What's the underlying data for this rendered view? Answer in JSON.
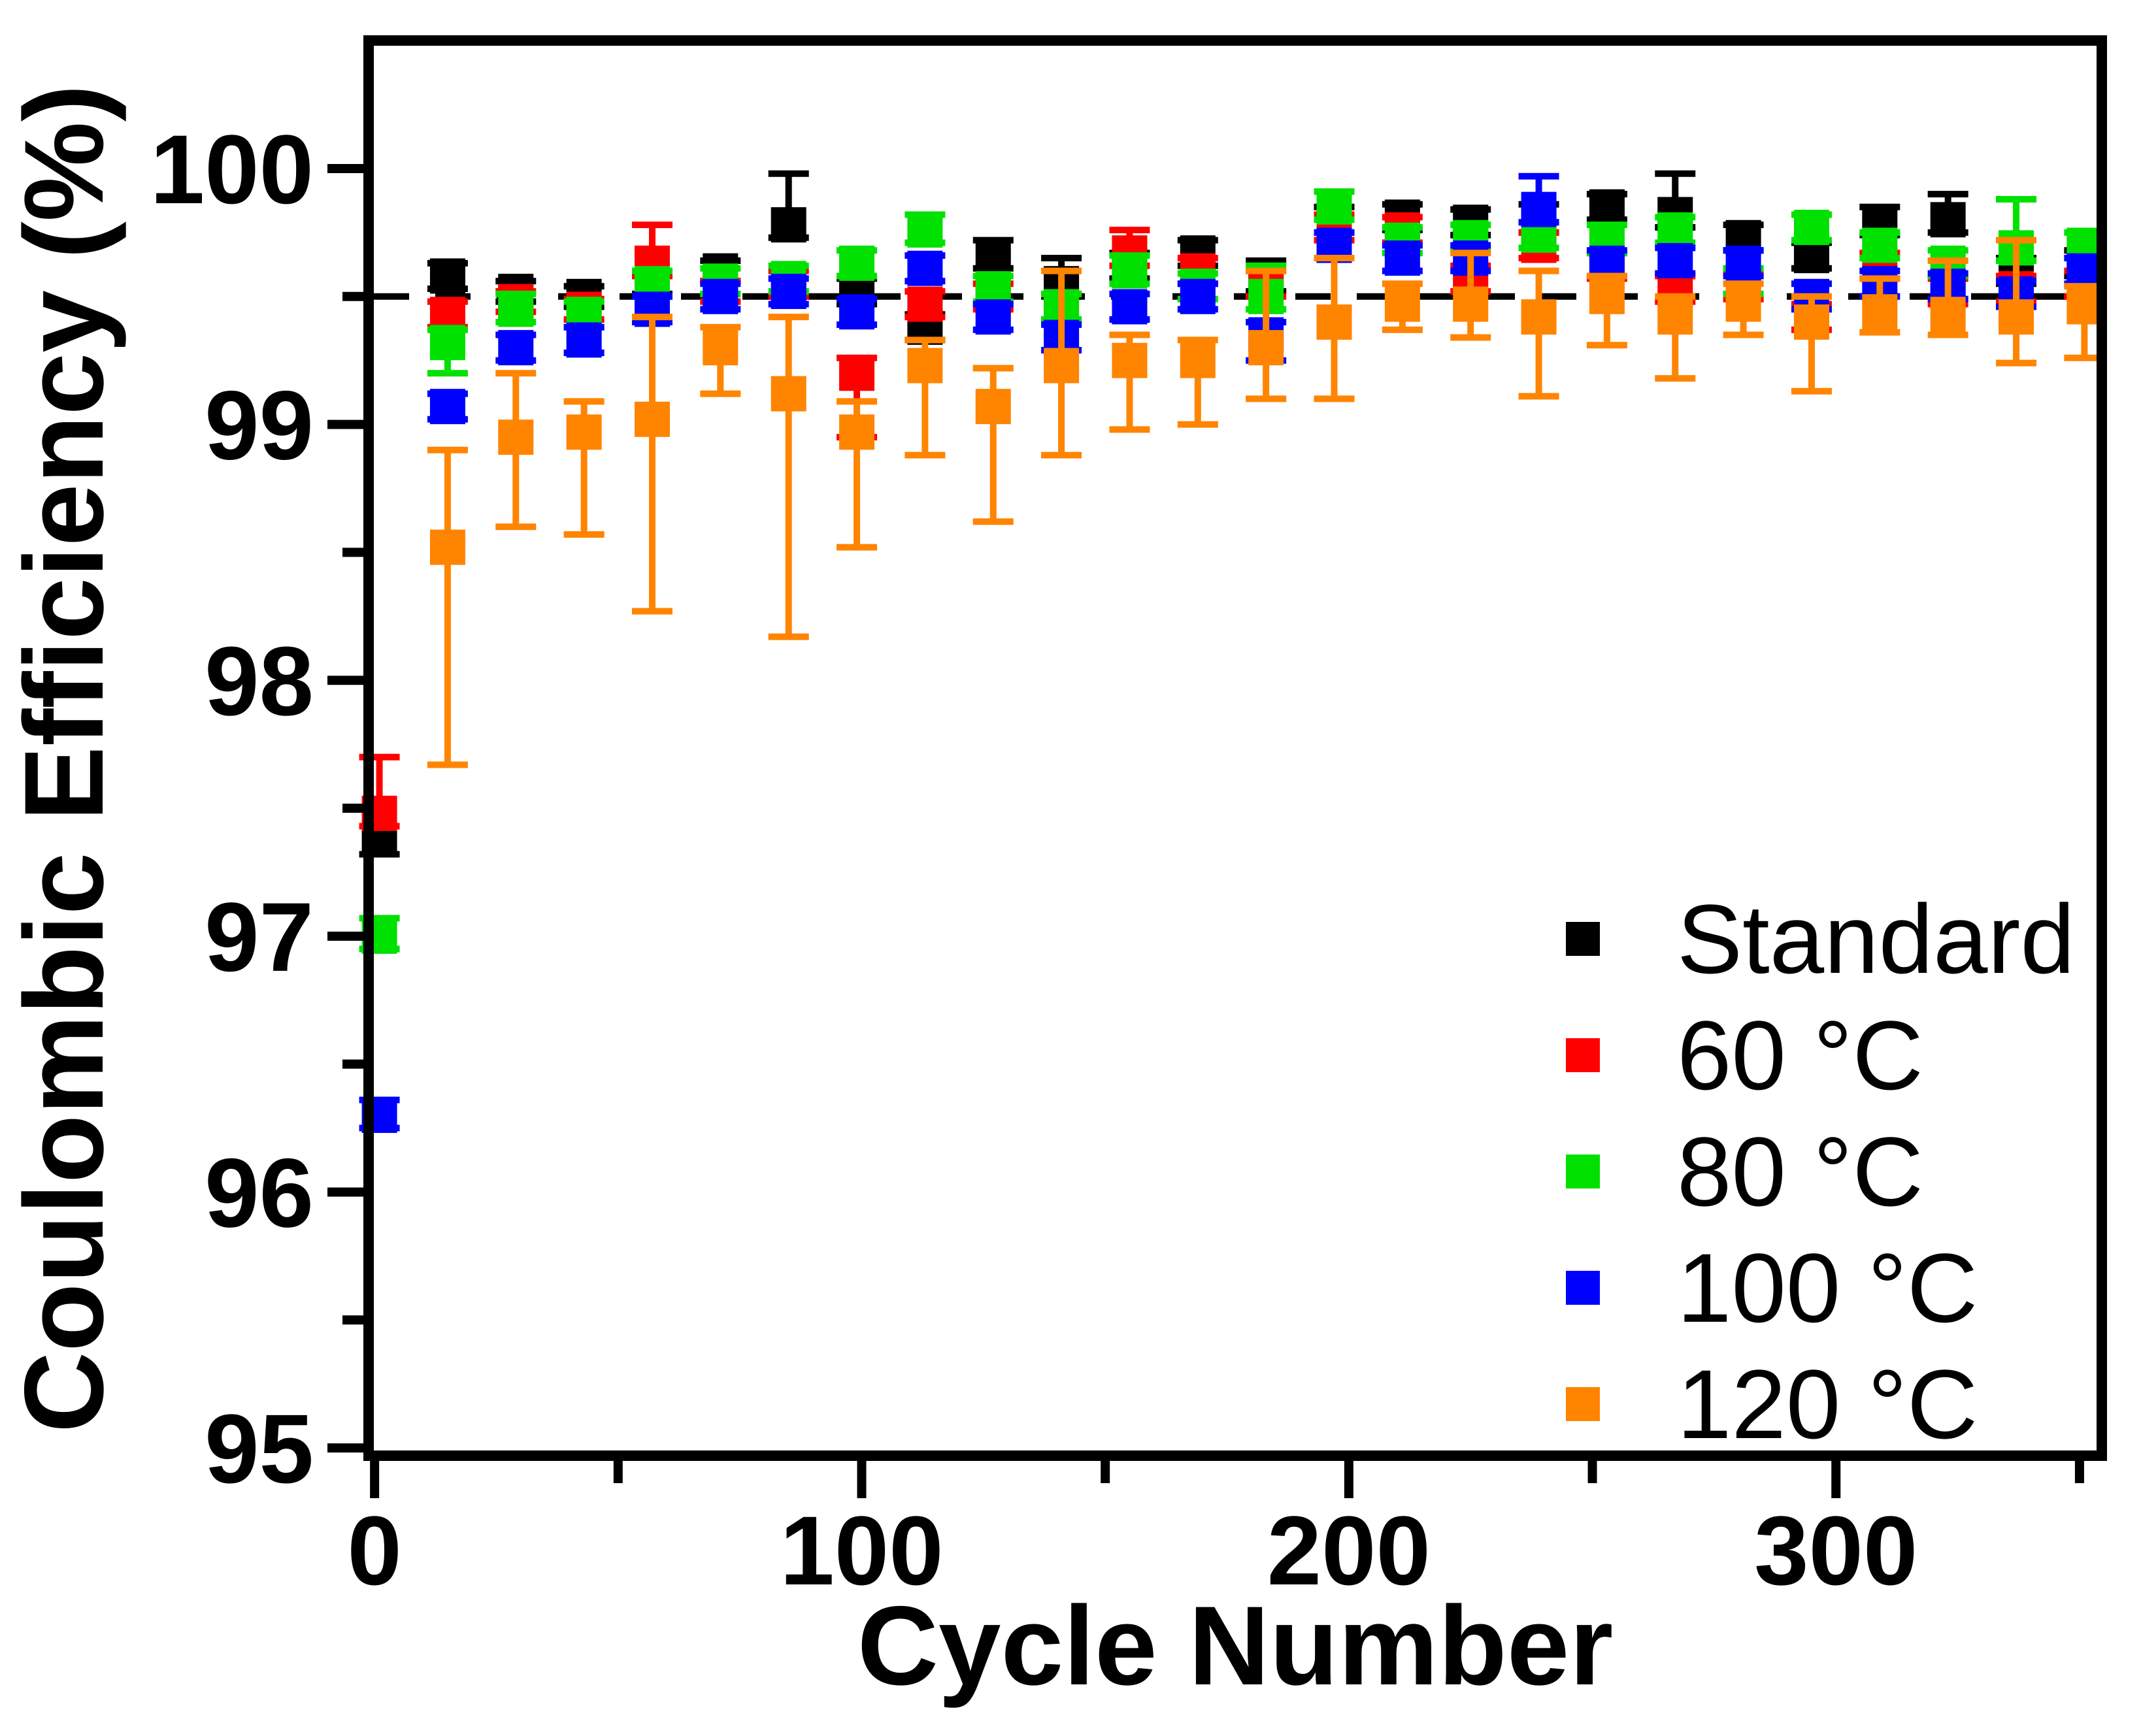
{
  "chart_data": {
    "type": "scatter",
    "title": "",
    "xlabel": "Cycle Number",
    "ylabel": "Coulombic Efficiency (%)",
    "xlim": [
      -0.15,
      353.5
    ],
    "ylim": [
      94.99,
      100.48
    ],
    "x_ticks": [
      0,
      100,
      200,
      300
    ],
    "x_minor_ticks": [
      50,
      150,
      250,
      350
    ],
    "y_ticks": [
      100,
      99,
      98,
      97,
      96,
      95
    ],
    "y_minor_ticks": [
      99.5,
      98.5,
      97.5,
      96.5,
      95.5
    ],
    "grid": false,
    "reference_line_y": 99.5,
    "reference_line_style": "dashed",
    "legend_position": "lower right",
    "marker": "square",
    "point_format": [
      "cycle",
      "value",
      "err_up",
      "err_down"
    ],
    "series": [
      {
        "name": "Standard",
        "color": "#000000",
        "points": [
          [
            1,
            97.38,
            0.0,
            0.06
          ],
          [
            15,
            99.58,
            0.05,
            0.05
          ],
          [
            29,
            99.52,
            0.04,
            0.04
          ],
          [
            43,
            99.5,
            0.04,
            0.04
          ],
          [
            57,
            99.55,
            0.04,
            0.04
          ],
          [
            71,
            99.6,
            0.04,
            0.04
          ],
          [
            85,
            99.78,
            0.2,
            0.05
          ],
          [
            99,
            99.52,
            0.05,
            0.05
          ],
          [
            113,
            99.38,
            0.05,
            0.05
          ],
          [
            127,
            99.66,
            0.06,
            0.05
          ],
          [
            141,
            99.55,
            0.1,
            0.05
          ],
          [
            155,
            99.62,
            0.05,
            0.05
          ],
          [
            169,
            99.67,
            0.05,
            0.05
          ],
          [
            183,
            99.58,
            0.06,
            0.06
          ],
          [
            197,
            99.8,
            0.05,
            0.05
          ],
          [
            211,
            99.81,
            0.05,
            0.05
          ],
          [
            225,
            99.79,
            0.05,
            0.05
          ],
          [
            239,
            99.8,
            0.06,
            0.05
          ],
          [
            253,
            99.85,
            0.05,
            0.05
          ],
          [
            267,
            99.82,
            0.16,
            0.05
          ],
          [
            281,
            99.73,
            0.05,
            0.05
          ],
          [
            295,
            99.66,
            0.05,
            0.05
          ],
          [
            309,
            99.79,
            0.06,
            0.05
          ],
          [
            323,
            99.8,
            0.1,
            0.05
          ],
          [
            337,
            99.6,
            0.05,
            0.05
          ],
          [
            351,
            99.63,
            0.05,
            0.05
          ]
        ]
      },
      {
        "name": "60 °C",
        "color": "#ff0000",
        "points": [
          [
            1,
            97.48,
            0.22,
            0.05
          ],
          [
            15,
            99.43,
            0.05,
            0.05
          ],
          [
            29,
            99.48,
            0.04,
            0.04
          ],
          [
            43,
            99.45,
            0.04,
            0.04
          ],
          [
            57,
            99.63,
            0.15,
            0.05
          ],
          [
            71,
            99.52,
            0.04,
            0.04
          ],
          [
            85,
            99.55,
            0.05,
            0.05
          ],
          [
            99,
            99.2,
            0.06,
            0.25
          ],
          [
            113,
            99.47,
            0.05,
            0.05
          ],
          [
            127,
            99.5,
            0.05,
            0.05
          ],
          [
            141,
            99.46,
            0.05,
            0.05
          ],
          [
            155,
            99.67,
            0.09,
            0.05
          ],
          [
            169,
            99.6,
            0.05,
            0.05
          ],
          [
            183,
            99.55,
            0.05,
            0.05
          ],
          [
            197,
            99.77,
            0.05,
            0.05
          ],
          [
            211,
            99.76,
            0.05,
            0.05
          ],
          [
            225,
            99.57,
            0.05,
            0.05
          ],
          [
            239,
            99.7,
            0.05,
            0.05
          ],
          [
            253,
            99.62,
            0.05,
            0.05
          ],
          [
            267,
            99.53,
            0.05,
            0.05
          ],
          [
            281,
            99.54,
            0.05,
            0.05
          ],
          [
            295,
            99.42,
            0.05,
            0.05
          ],
          [
            309,
            99.62,
            0.05,
            0.05
          ],
          [
            323,
            99.52,
            0.05,
            0.05
          ],
          [
            337,
            99.53,
            0.05,
            0.05
          ],
          [
            351,
            99.55,
            0.05,
            0.05
          ]
        ]
      },
      {
        "name": "80 °C",
        "color": "#00e100",
        "points": [
          [
            1,
            97.0,
            0.07,
            0.05
          ],
          [
            15,
            99.32,
            0.05,
            0.12
          ],
          [
            29,
            99.45,
            0.06,
            0.05
          ],
          [
            43,
            99.43,
            0.05,
            0.05
          ],
          [
            57,
            99.55,
            0.05,
            0.05
          ],
          [
            71,
            99.56,
            0.05,
            0.05
          ],
          [
            85,
            99.57,
            0.05,
            0.05
          ],
          [
            99,
            99.63,
            0.05,
            0.05
          ],
          [
            113,
            99.76,
            0.06,
            0.05
          ],
          [
            127,
            99.53,
            0.05,
            0.05
          ],
          [
            141,
            99.46,
            0.05,
            0.05
          ],
          [
            155,
            99.6,
            0.06,
            0.05
          ],
          [
            169,
            99.54,
            0.05,
            0.05
          ],
          [
            183,
            99.5,
            0.12,
            0.05
          ],
          [
            197,
            99.85,
            0.06,
            0.05
          ],
          [
            211,
            99.72,
            0.05,
            0.05
          ],
          [
            225,
            99.73,
            0.05,
            0.05
          ],
          [
            239,
            99.74,
            0.05,
            0.05
          ],
          [
            253,
            99.72,
            0.06,
            0.05
          ],
          [
            267,
            99.76,
            0.05,
            0.05
          ],
          [
            281,
            99.56,
            0.05,
            0.05
          ],
          [
            295,
            99.77,
            0.05,
            0.05
          ],
          [
            309,
            99.7,
            0.05,
            0.05
          ],
          [
            323,
            99.63,
            0.05,
            0.05
          ],
          [
            337,
            99.69,
            0.19,
            0.05
          ],
          [
            351,
            99.7,
            0.05,
            0.05
          ]
        ]
      },
      {
        "name": "100 °C",
        "color": "#0000ff",
        "points": [
          [
            1,
            96.3,
            0.06,
            0.05
          ],
          [
            15,
            99.07,
            0.05,
            0.05
          ],
          [
            29,
            99.3,
            0.05,
            0.05
          ],
          [
            43,
            99.33,
            0.05,
            0.05
          ],
          [
            57,
            99.45,
            0.05,
            0.05
          ],
          [
            71,
            99.5,
            0.05,
            0.05
          ],
          [
            85,
            99.52,
            0.05,
            0.05
          ],
          [
            99,
            99.44,
            0.05,
            0.05
          ],
          [
            113,
            99.61,
            0.05,
            0.05
          ],
          [
            127,
            99.42,
            0.05,
            0.05
          ],
          [
            141,
            99.34,
            0.05,
            0.05
          ],
          [
            155,
            99.46,
            0.05,
            0.05
          ],
          [
            169,
            99.5,
            0.05,
            0.05
          ],
          [
            183,
            99.35,
            0.05,
            0.1
          ],
          [
            197,
            99.7,
            0.05,
            0.05
          ],
          [
            211,
            99.65,
            0.05,
            0.05
          ],
          [
            225,
            99.65,
            0.05,
            0.05
          ],
          [
            239,
            99.84,
            0.13,
            0.05
          ],
          [
            253,
            99.63,
            0.05,
            0.05
          ],
          [
            267,
            99.64,
            0.05,
            0.05
          ],
          [
            281,
            99.63,
            0.05,
            0.05
          ],
          [
            295,
            99.5,
            0.05,
            0.05
          ],
          [
            309,
            99.55,
            0.05,
            0.05
          ],
          [
            323,
            99.54,
            0.05,
            0.05
          ],
          [
            337,
            99.51,
            0.05,
            0.05
          ],
          [
            351,
            99.6,
            0.05,
            0.05
          ]
        ]
      },
      {
        "name": "120 °C",
        "color": "#ff8400",
        "points": [
          [
            15,
            98.52,
            0.38,
            0.85
          ],
          [
            29,
            98.95,
            0.25,
            0.35
          ],
          [
            43,
            98.97,
            0.12,
            0.4
          ],
          [
            57,
            99.02,
            0.4,
            0.75
          ],
          [
            71,
            99.3,
            0.08,
            0.18
          ],
          [
            85,
            99.12,
            0.3,
            0.95
          ],
          [
            99,
            98.97,
            0.12,
            0.45
          ],
          [
            113,
            99.23,
            0.1,
            0.35
          ],
          [
            127,
            99.07,
            0.15,
            0.45
          ],
          [
            141,
            99.23,
            0.37,
            0.35
          ],
          [
            155,
            99.25,
            0.1,
            0.27
          ],
          [
            169,
            99.25,
            0.08,
            0.25
          ],
          [
            183,
            99.3,
            0.3,
            0.2
          ],
          [
            197,
            99.4,
            0.25,
            0.3
          ],
          [
            211,
            99.47,
            0.08,
            0.1
          ],
          [
            225,
            99.47,
            0.2,
            0.13
          ],
          [
            239,
            99.42,
            0.18,
            0.31
          ],
          [
            253,
            99.5,
            0.08,
            0.19
          ],
          [
            267,
            99.42,
            0.08,
            0.24
          ],
          [
            281,
            99.47,
            0.08,
            0.12
          ],
          [
            295,
            99.4,
            0.1,
            0.27
          ],
          [
            309,
            99.44,
            0.13,
            0.08
          ],
          [
            323,
            99.43,
            0.21,
            0.08
          ],
          [
            337,
            99.42,
            0.3,
            0.18
          ],
          [
            351,
            99.46,
            0.08,
            0.2
          ]
        ]
      }
    ]
  }
}
